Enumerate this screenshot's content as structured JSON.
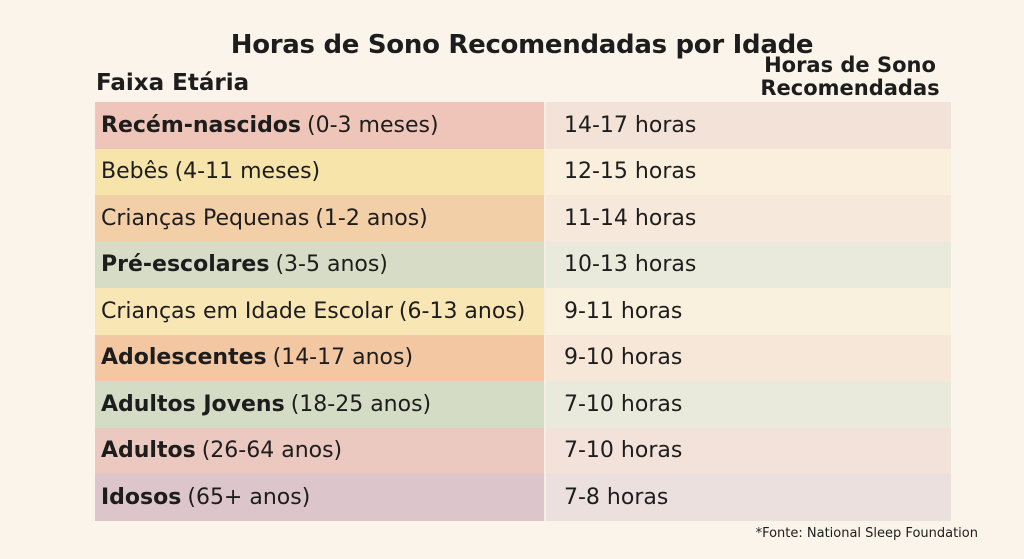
{
  "chart_data": {
    "type": "table",
    "title": "Horas de Sono Recomendadas por Idade",
    "columns": [
      "Faixa Etária",
      "Horas de Sono Recomendadas"
    ],
    "rows": [
      {
        "group": "Recém-nascidos",
        "detail": "(0-3 meses)",
        "hours": "14-17 horas",
        "bold": true,
        "color": "#eec5b8",
        "hours_color": "#f3e2d8"
      },
      {
        "group": "Bebês",
        "detail": "(4-11 meses)",
        "hours": "12-15 horas",
        "bold": false,
        "color": "#f7e4ab",
        "hours_color": "#f9efdc"
      },
      {
        "group": "Crianças Pequenas",
        "detail": "(1-2 anos)",
        "hours": "11-14 horas",
        "bold": false,
        "color": "#f3cfa8",
        "hours_color": "#f6e8da"
      },
      {
        "group": "Pré-escolares",
        "detail": "(3-5 anos)",
        "hours": "10-13 horas",
        "bold": true,
        "color": "#d6dcc6",
        "hours_color": "#e9eadb"
      },
      {
        "group": "Crianças em Idade Escolar",
        "detail": "(6-13 anos)",
        "hours": "9-11 horas",
        "bold": false,
        "color": "#f8e6b4",
        "hours_color": "#f9f0de"
      },
      {
        "group": "Adolescentes",
        "detail": "(14-17 anos)",
        "hours": "9-10 horas",
        "bold": true,
        "color": "#f2c7a2",
        "hours_color": "#f6e7d8"
      },
      {
        "group": "Adultos Jovens",
        "detail": "(18-25 anos)",
        "hours": "7-10 horas",
        "bold": true,
        "color": "#d5dcc5",
        "hours_color": "#e9eadb"
      },
      {
        "group": "Adultos",
        "detail": "(26-64 anos)",
        "hours": "7-10 horas",
        "bold": true,
        "color": "#ecc9c0",
        "hours_color": "#f2e2da"
      },
      {
        "group": "Idosos",
        "detail": "(65+ anos)",
        "hours": "7-8 horas",
        "bold": true,
        "color": "#dcc6cb",
        "hours_color": "#ece0df"
      }
    ],
    "footnote": "*Fonte: National Sleep Foundation"
  }
}
